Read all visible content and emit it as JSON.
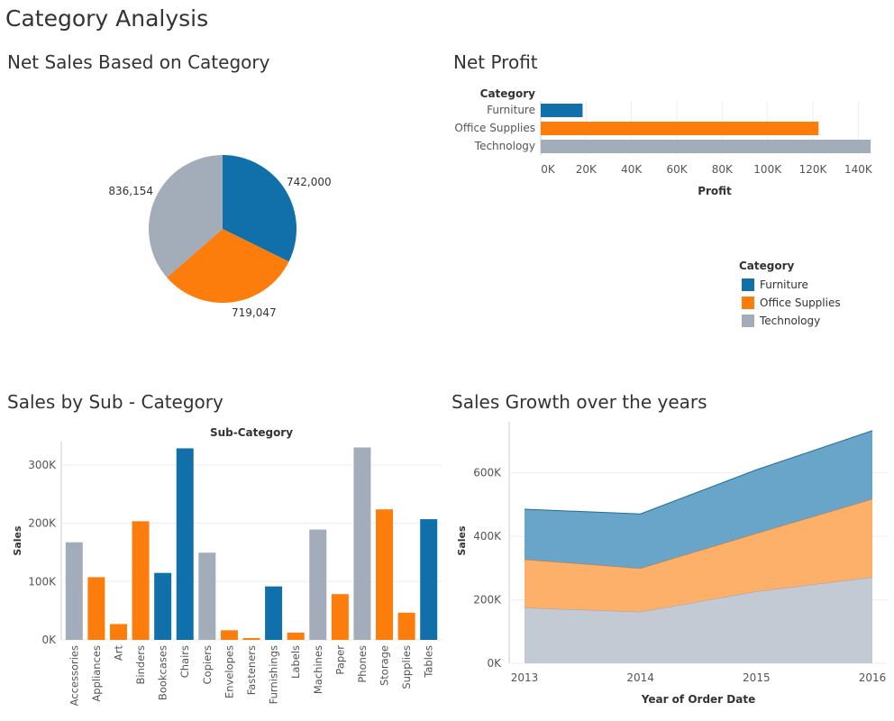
{
  "dashboard": {
    "title": "Category Analysis"
  },
  "colors": {
    "Furniture": "#1170aa",
    "Office Supplies": "#fc7d0b",
    "Technology": "#a3acb9"
  },
  "legend": {
    "title": "Category",
    "items": [
      "Furniture",
      "Office Supplies",
      "Technology"
    ]
  },
  "chart_data": [
    {
      "id": "pie",
      "type": "pie",
      "title": "Net Sales Based on Category",
      "labels": [
        "Furniture",
        "Office Supplies",
        "Technology"
      ],
      "values": [
        742000,
        719047,
        836154
      ],
      "value_labels": [
        "742,000",
        "719,047",
        "836,154"
      ]
    },
    {
      "id": "profit",
      "type": "bar",
      "orientation": "horizontal",
      "title": "Net Profit",
      "category_axis_title": "Category",
      "categories": [
        "Furniture",
        "Office Supplies",
        "Technology"
      ],
      "values": [
        18451,
        122491,
        145455
      ],
      "xlabel": "Profit",
      "xlim": [
        0,
        147000
      ],
      "xticks": [
        0,
        20000,
        40000,
        60000,
        80000,
        100000,
        120000,
        140000
      ],
      "xtick_labels": [
        "0K",
        "20K",
        "40K",
        "60K",
        "80K",
        "100K",
        "120K",
        "140K"
      ]
    },
    {
      "id": "subcat",
      "type": "bar",
      "title": "Sales by Sub - Category",
      "header": "Sub-Category",
      "ylabel": "Sales",
      "ylim": [
        0,
        340000
      ],
      "yticks": [
        0,
        100000,
        200000,
        300000
      ],
      "ytick_labels": [
        "0K",
        "100K",
        "200K",
        "300K"
      ],
      "categories": [
        "Accessories",
        "Appliances",
        "Art",
        "Binders",
        "Bookcases",
        "Chairs",
        "Copiers",
        "Envelopes",
        "Fasteners",
        "Furnishings",
        "Labels",
        "Machines",
        "Paper",
        "Phones",
        "Storage",
        "Supplies",
        "Tables"
      ],
      "bar_category": [
        "Technology",
        "Office Supplies",
        "Office Supplies",
        "Office Supplies",
        "Furniture",
        "Furniture",
        "Technology",
        "Office Supplies",
        "Office Supplies",
        "Furniture",
        "Office Supplies",
        "Technology",
        "Office Supplies",
        "Technology",
        "Office Supplies",
        "Office Supplies",
        "Furniture"
      ],
      "values": [
        167380,
        107532,
        27119,
        203413,
        114880,
        328449,
        149528,
        16476,
        3024,
        91705,
        12486,
        189239,
        78479,
        330007,
        223844,
        46674,
        206966
      ]
    },
    {
      "id": "growth",
      "type": "area",
      "stacked": true,
      "title": "Sales Growth over the years",
      "xlabel": "Year of Order Date",
      "ylabel": "Sales",
      "x": [
        "2013",
        "2014",
        "2015",
        "2016"
      ],
      "ylim": [
        0,
        760000
      ],
      "yticks": [
        0,
        200000,
        400000,
        600000
      ],
      "ytick_labels": [
        "0K",
        "200K",
        "400K",
        "600K"
      ],
      "series": [
        {
          "name": "Technology",
          "values": [
            175000,
            162000,
            226000,
            271000
          ]
        },
        {
          "name": "Office Supplies",
          "values": [
            152000,
            137000,
            183000,
            246000
          ]
        },
        {
          "name": "Furniture",
          "values": [
            158000,
            171000,
            200000,
            215000
          ]
        }
      ]
    }
  ]
}
